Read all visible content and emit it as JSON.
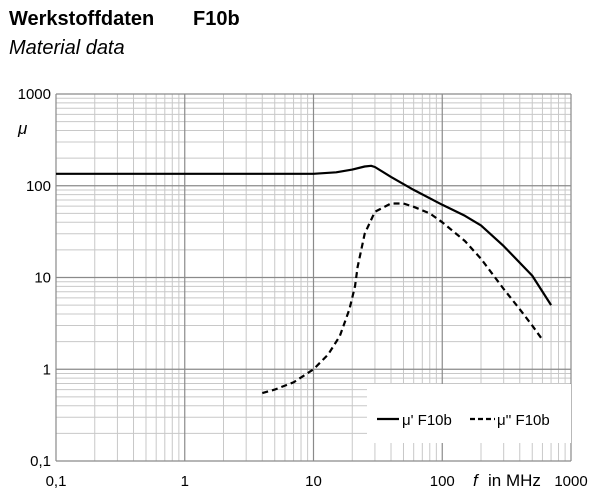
{
  "header": {
    "title": "Werkstoffdaten",
    "grade": "F10b",
    "subtitle": "Material data"
  },
  "chart_data": {
    "type": "line",
    "xscale": "log",
    "yscale": "log",
    "xlim": [
      0.1,
      1000
    ],
    "ylim": [
      0.1,
      1000
    ],
    "xticks": [
      0.1,
      1,
      10,
      100,
      1000
    ],
    "xtick_labels": [
      "0,1",
      "1",
      "10",
      "100",
      "1000"
    ],
    "yticks": [
      0.1,
      1,
      10,
      100,
      1000
    ],
    "ytick_labels": [
      "0,1",
      "1",
      "10",
      "100",
      "1000"
    ],
    "ylabel": "μ",
    "xlabel_symbol": "f",
    "xlabel_text": "in MHz",
    "grid": true,
    "legend_position": "bottom-right",
    "series": [
      {
        "name": "μ' F10b",
        "style": "solid",
        "x": [
          0.1,
          1,
          5,
          10,
          15,
          20,
          25,
          28,
          30,
          40,
          60,
          100,
          150,
          200,
          300,
          500,
          700
        ],
        "y": [
          135,
          135,
          135,
          135,
          140,
          150,
          162,
          165,
          160,
          125,
          90,
          62,
          47,
          37,
          22,
          10.5,
          5
        ]
      },
      {
        "name": "μ'' F10b",
        "style": "dashed",
        "x": [
          4,
          5,
          7,
          10,
          13,
          16,
          19,
          21,
          22,
          25,
          30,
          40,
          50,
          60,
          80,
          100,
          150,
          200,
          300,
          400,
          500,
          600
        ],
        "y": [
          0.55,
          0.6,
          0.72,
          1.0,
          1.45,
          2.3,
          4.5,
          8,
          13,
          30,
          52,
          64,
          64,
          59,
          50,
          40,
          25,
          16,
          7.5,
          4.5,
          3.0,
          2.1
        ]
      }
    ]
  }
}
